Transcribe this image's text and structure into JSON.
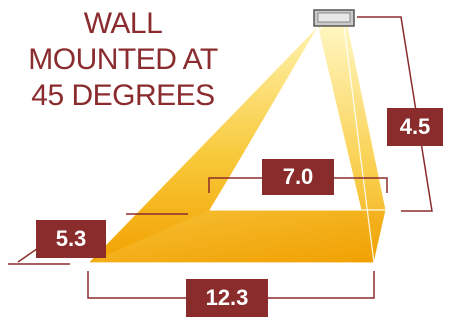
{
  "title": {
    "lines": [
      "WALL",
      "MOUNTED AT",
      "45 DEGREES"
    ]
  },
  "dimensions": {
    "height": "4.5",
    "depth": "7.0",
    "side": "5.3",
    "width": "12.3"
  },
  "colors": {
    "title": "#8a2b2e",
    "label_bg": "#8b2c2c",
    "label_text": "#ffffff",
    "beam_light": "#fff2a0",
    "beam_mid": "#f5c02a",
    "beam_dark": "#f0a000",
    "line": "#8b2c2c"
  },
  "icons": {
    "fixture": "wall-light-fixture-icon"
  }
}
